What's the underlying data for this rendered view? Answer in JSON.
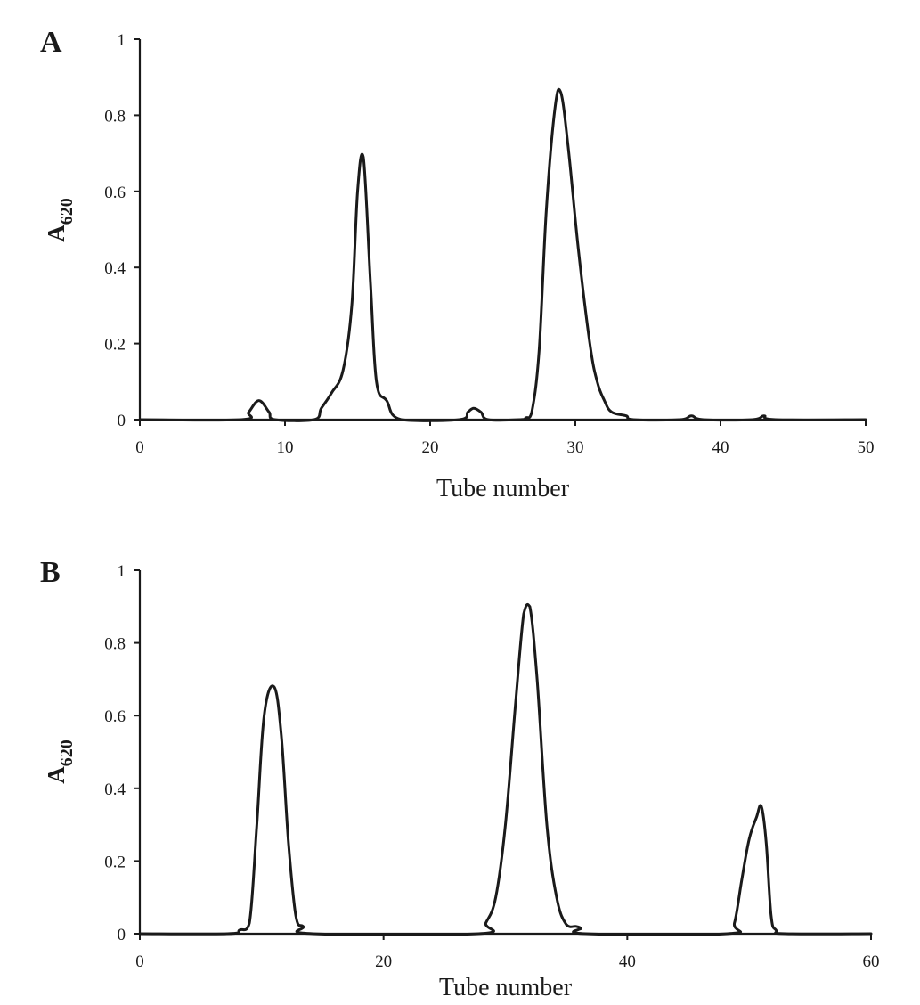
{
  "chart_data": [
    {
      "panel": "A",
      "type": "line",
      "xlabel": "Tube number",
      "ylabel": "A",
      "ylabel_subscript": "620",
      "xlim": [
        0,
        50
      ],
      "ylim": [
        0,
        1
      ],
      "xticks": [
        0,
        10,
        20,
        30,
        40,
        50
      ],
      "yticks": [
        0,
        0.2,
        0.4,
        0.6,
        0.8,
        1
      ],
      "ytick_labels": [
        "0",
        "0.2",
        "0.4",
        "0.6",
        "0.8",
        "1"
      ],
      "grid": false,
      "series": [
        {
          "x": [
            0,
            7,
            7.5,
            8.2,
            8.9,
            9.3,
            12,
            12.5,
            13.2,
            14.0,
            14.6,
            15.0,
            15.4,
            15.9,
            16.3,
            17.0,
            18.0,
            22,
            22.6,
            23.0,
            23.5,
            24.0,
            26.2,
            26.6,
            27.0,
            27.5,
            28.0,
            28.6,
            29.0,
            29.5,
            30.2,
            31.0,
            31.5,
            32.0,
            32.5,
            33.5,
            34.0,
            37.2,
            38.0,
            38.8,
            42.2,
            43.0,
            43.8,
            50
          ],
          "y": [
            0,
            0,
            0.02,
            0.05,
            0.02,
            0,
            0,
            0.03,
            0.07,
            0.13,
            0.3,
            0.6,
            0.69,
            0.35,
            0.1,
            0.05,
            0,
            0,
            0.02,
            0.03,
            0.02,
            0,
            0,
            0.005,
            0.02,
            0.18,
            0.55,
            0.82,
            0.86,
            0.72,
            0.45,
            0.2,
            0.1,
            0.05,
            0.02,
            0.01,
            0,
            0,
            0.01,
            0,
            0,
            0.01,
            0,
            0
          ]
        }
      ]
    },
    {
      "panel": "B",
      "type": "line",
      "xlabel": "Tube number",
      "ylabel": "A",
      "ylabel_subscript": "620",
      "xlim": [
        0,
        60
      ],
      "ylim": [
        0,
        1
      ],
      "xticks": [
        0,
        20,
        40,
        60
      ],
      "yticks": [
        0,
        0.2,
        0.4,
        0.6,
        0.8,
        1
      ],
      "ytick_labels": [
        "0",
        "0.2",
        "0.4",
        "0.6",
        "0.8",
        "1"
      ],
      "grid": false,
      "series": [
        {
          "x": [
            0,
            7.2,
            8.2,
            9.0,
            9.6,
            10.2,
            11.0,
            11.6,
            12.2,
            12.8,
            13.4,
            14.2,
            27.8,
            28.4,
            29.2,
            30.0,
            30.8,
            31.5,
            32.0,
            32.6,
            33.4,
            34.2,
            35.0,
            35.8,
            36.2,
            36.6,
            48.2,
            48.8,
            49.4,
            50.0,
            50.6,
            51.0,
            51.4,
            51.8,
            52.2,
            53.0,
            60
          ],
          "y": [
            0,
            0,
            0.01,
            0.03,
            0.3,
            0.6,
            0.68,
            0.55,
            0.25,
            0.05,
            0.02,
            0,
            0,
            0.03,
            0.1,
            0.3,
            0.62,
            0.88,
            0.9,
            0.7,
            0.3,
            0.1,
            0.025,
            0.02,
            0.015,
            0,
            0,
            0.03,
            0.15,
            0.26,
            0.32,
            0.35,
            0.25,
            0.05,
            0.01,
            0,
            0
          ]
        }
      ]
    }
  ]
}
